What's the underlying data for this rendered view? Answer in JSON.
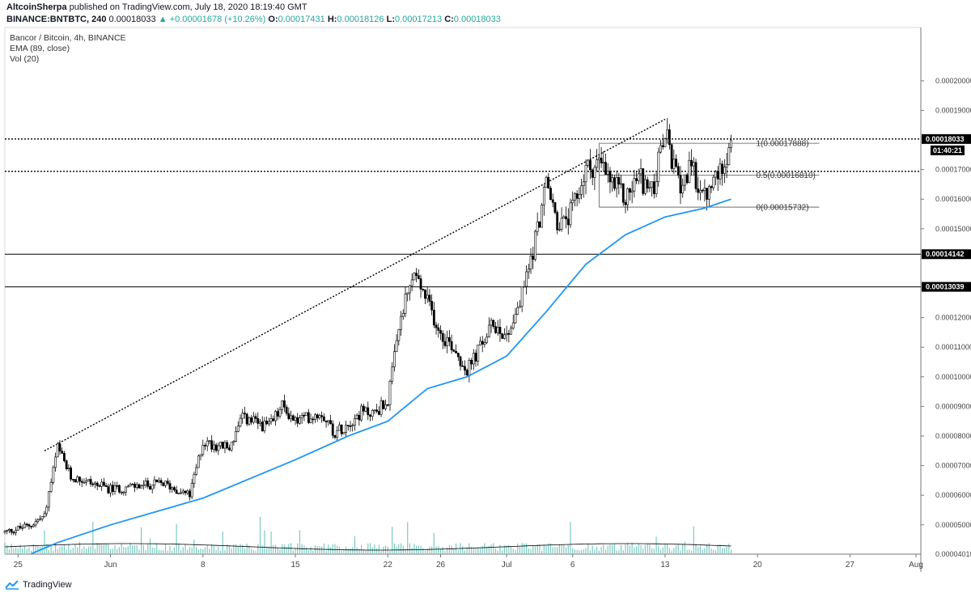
{
  "header": {
    "publisher": "AltcoinSherpa",
    "published_text": "published on TradingView.com, July 18, 2020 18:19:40 GMT",
    "symbol": "BINANCE:BNTBTC, 240",
    "last": "0.00018033",
    "change": "▲ +0.00001678 (+10.26%)",
    "o_label": "O:",
    "o_value": "0.00017431",
    "h_label": "H:",
    "h_value": "0.00018126",
    "l_label": "L:",
    "l_value": "0.00017213",
    "c_label": "C:",
    "c_value": "0.00018033"
  },
  "legend": {
    "title": "Bancor / Bitcoin, 4h, BINANCE",
    "ema": "EMA (89, close)",
    "vol": "Vol (20)"
  },
  "footer": {
    "brand": "TradingView"
  },
  "chart_data": {
    "type": "candlestick",
    "ylim": [
      4.01e-05,
      0.000218
    ],
    "price_ticks": [
      5e-05,
      6e-05,
      7e-05,
      8e-05,
      9e-05,
      0.0001,
      0.00011,
      0.00012,
      0.00015,
      0.00016,
      0.00017,
      0.00019,
      0.0002
    ],
    "price_tick_labels": [
      "0.00005000",
      "0.00006000",
      "0.00007000",
      "0.00008000",
      "0.00009000",
      "0.00010000",
      "0.00011000",
      "0.00012000",
      "0.00015000",
      "0.00016000",
      "0.00017000",
      "0.00019000",
      "0.00020000"
    ],
    "bottom_tick": {
      "value": 4.01e-05,
      "label": "0.00004010"
    },
    "x_start": "2020-05-24",
    "x_end": "2020-08-01",
    "date_ticks": [
      {
        "date": "2020-05-25",
        "label": "25"
      },
      {
        "date": "2020-06-01",
        "label": "Jun"
      },
      {
        "date": "2020-06-08",
        "label": "8"
      },
      {
        "date": "2020-06-15",
        "label": "15"
      },
      {
        "date": "2020-06-22",
        "label": "22"
      },
      {
        "date": "2020-06-26",
        "label": "26"
      },
      {
        "date": "2020-07-01",
        "label": "Jul"
      },
      {
        "date": "2020-07-06",
        "label": "6"
      },
      {
        "date": "2020-07-13",
        "label": "13"
      },
      {
        "date": "2020-07-20",
        "label": "20"
      },
      {
        "date": "2020-07-27",
        "label": "27"
      },
      {
        "date": "2020-08-01",
        "label": "Aug"
      }
    ],
    "price_path": [
      [
        "2020-05-24",
        4.75e-05
      ],
      [
        "2020-05-26",
        5e-05
      ],
      [
        "2020-05-27",
        5.3e-05
      ],
      [
        "2020-05-28",
        7.6e-05
      ],
      [
        "2020-05-29",
        6.6e-05
      ],
      [
        "2020-05-30",
        6.5e-05
      ],
      [
        "2020-06-01",
        6.2e-05
      ],
      [
        "2020-06-03",
        6.3e-05
      ],
      [
        "2020-06-05",
        6.4e-05
      ],
      [
        "2020-06-07",
        6e-05
      ],
      [
        "2020-06-08",
        7.8e-05
      ],
      [
        "2020-06-10",
        7.6e-05
      ],
      [
        "2020-06-11",
        8.6e-05
      ],
      [
        "2020-06-13",
        8.3e-05
      ],
      [
        "2020-06-14",
        9e-05
      ],
      [
        "2020-06-15",
        8.5e-05
      ],
      [
        "2020-06-17",
        8.8e-05
      ],
      [
        "2020-06-18",
        8.1e-05
      ],
      [
        "2020-06-20",
        8.8e-05
      ],
      [
        "2020-06-21",
        8.8e-05
      ],
      [
        "2020-06-22",
        9.2e-05
      ],
      [
        "2020-06-23",
        0.00012
      ],
      [
        "2020-06-24",
        0.000135
      ],
      [
        "2020-06-25",
        0.000125
      ],
      [
        "2020-06-26",
        0.000115
      ],
      [
        "2020-06-27",
        0.00011
      ],
      [
        "2020-06-28",
        0.000102
      ],
      [
        "2020-06-29",
        0.00011
      ],
      [
        "2020-06-30",
        0.000118
      ],
      [
        "2020-07-01",
        0.000114
      ],
      [
        "2020-07-02",
        0.000125
      ],
      [
        "2020-07-03",
        0.000143
      ],
      [
        "2020-07-04",
        0.000165
      ],
      [
        "2020-07-05",
        0.00015
      ],
      [
        "2020-07-06",
        0.000156
      ],
      [
        "2020-07-07",
        0.00017
      ],
      [
        "2020-07-08",
        0.000172
      ],
      [
        "2020-07-09",
        0.000165
      ],
      [
        "2020-07-10",
        0.00016
      ],
      [
        "2020-07-11",
        0.000168
      ],
      [
        "2020-07-12",
        0.000162
      ],
      [
        "2020-07-13",
        0.000182
      ],
      [
        "2020-07-14",
        0.000165
      ],
      [
        "2020-07-15",
        0.00017
      ],
      [
        "2020-07-16",
        0.00016
      ],
      [
        "2020-07-17",
        0.000168
      ],
      [
        "2020-07-18",
        0.00018
      ]
    ],
    "ema_89": [
      [
        "2020-05-26",
        4.02e-05
      ],
      [
        "2020-05-28",
        4.4e-05
      ],
      [
        "2020-06-01",
        5e-05
      ],
      [
        "2020-06-08",
        5.9e-05
      ],
      [
        "2020-06-15",
        7.2e-05
      ],
      [
        "2020-06-19",
        8e-05
      ],
      [
        "2020-06-22",
        8.5e-05
      ],
      [
        "2020-06-25",
        9.6e-05
      ],
      [
        "2020-06-28",
        0.0001
      ],
      [
        "2020-07-01",
        0.000107
      ],
      [
        "2020-07-04",
        0.000122
      ],
      [
        "2020-07-07",
        0.000138
      ],
      [
        "2020-07-10",
        0.000148
      ],
      [
        "2020-07-13",
        0.000154
      ],
      [
        "2020-07-16",
        0.000157
      ],
      [
        "2020-07-18",
        0.00016
      ]
    ],
    "horizontal_levels": [
      {
        "value": 0.00018033,
        "label": "0.00018033",
        "style": "dotted"
      },
      {
        "value": 0.0001694,
        "label": "",
        "style": "dotted"
      },
      {
        "value": 0.00014142,
        "label": "0.00014142",
        "style": "solid"
      },
      {
        "value": 0.00013039,
        "label": "0.00013039",
        "style": "solid"
      }
    ],
    "countdown": "01:40:21",
    "trendline": {
      "x1": "2020-05-27",
      "y1": 7.5e-05,
      "x2": "2020-07-13",
      "y2": 0.000187
    },
    "fib": {
      "x_start": "2020-07-08",
      "x_end": "2020-07-18",
      "x_end_line": "2020-07-21",
      "levels": [
        {
          "value": 0.00017888,
          "label": "1(0.00017888)"
        },
        {
          "value": 0.0001681,
          "label": "0.5(0.00016810)"
        },
        {
          "value": 0.00015732,
          "label": "0(0.00015732)"
        }
      ]
    },
    "colors": {
      "candles": "#000000",
      "ema": "#2196f3",
      "volume": "#26a69a",
      "tag_bg": "#000000",
      "axis": "#999999"
    }
  }
}
